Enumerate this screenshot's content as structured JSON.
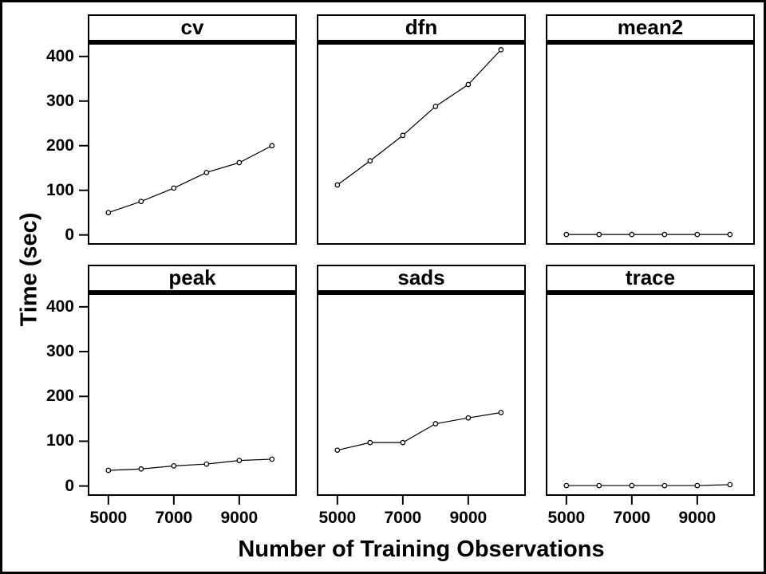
{
  "chart_data": {
    "type": "line",
    "layout": {
      "kind": "trellis-small-multiples",
      "rows": 2,
      "cols": 3
    },
    "xlabel": "Number of Training Observations",
    "ylabel": "Time (sec)",
    "x": [
      5000,
      6000,
      7000,
      8000,
      9000,
      10000
    ],
    "xticks": [
      5000,
      7000,
      9000
    ],
    "yticks": [
      0,
      100,
      200,
      300,
      400
    ],
    "xlim": [
      4370,
      10760
    ],
    "ylim": [
      -22,
      430
    ],
    "grid": false,
    "legend": "none",
    "marker": "open-circle",
    "colors": {
      "line": "#000000",
      "marker_fill": "#ffffff",
      "border": "#000000",
      "background": "#ffffff",
      "text": "#000000"
    },
    "panels": [
      {
        "title": "cv",
        "values": [
          50,
          75,
          105,
          140,
          162,
          200
        ]
      },
      {
        "title": "dfn",
        "values": [
          112,
          166,
          223,
          288,
          337,
          415
        ]
      },
      {
        "title": "mean2",
        "values": [
          1,
          1,
          1,
          1,
          1,
          1
        ]
      },
      {
        "title": "peak",
        "values": [
          35,
          38,
          45,
          49,
          57,
          60
        ]
      },
      {
        "title": "sads",
        "values": [
          80,
          97,
          97,
          139,
          152,
          164
        ]
      },
      {
        "title": "trace",
        "values": [
          1,
          1,
          1,
          1,
          1,
          3
        ]
      }
    ]
  }
}
